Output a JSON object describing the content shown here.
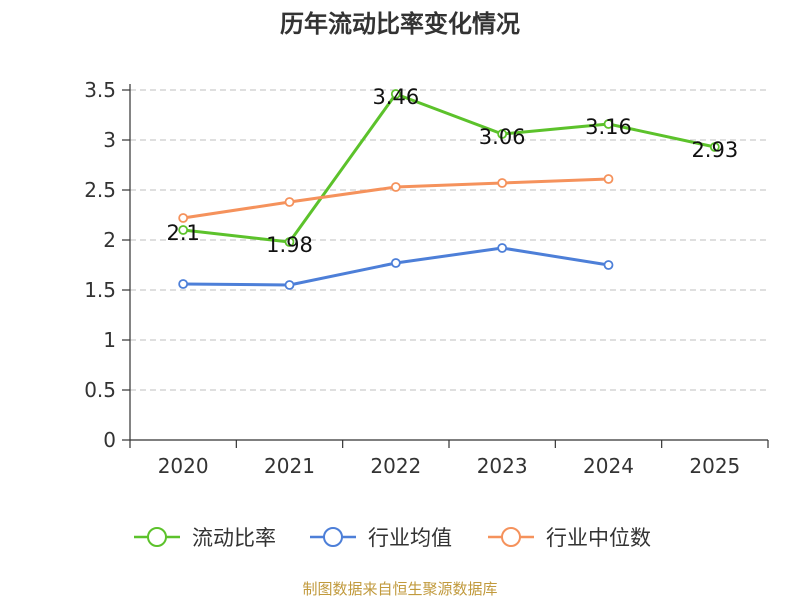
{
  "chart_data": {
    "type": "line",
    "title": "历年流动比率变化情况",
    "categories": [
      "2020",
      "2021",
      "2022",
      "2023",
      "2024",
      "2025"
    ],
    "ylim": [
      0,
      3.5
    ],
    "yticks": [
      "0",
      "0.5",
      "1",
      "1.5",
      "2",
      "2.5",
      "3",
      "3.5"
    ],
    "ytick_values": [
      0,
      0.5,
      1,
      1.5,
      2,
      2.5,
      3,
      3.5
    ],
    "grid": true,
    "legend_position": "bottom",
    "series": [
      {
        "name": "流动比率",
        "color": "#5cc22b",
        "values": [
          2.1,
          1.98,
          3.46,
          3.06,
          3.16,
          2.93
        ],
        "labels": [
          "2.1",
          "1.98",
          "3.46",
          "3.06",
          "3.16",
          "2.93"
        ]
      },
      {
        "name": "行业均值",
        "color": "#4d7fd8",
        "values": [
          1.56,
          1.55,
          1.77,
          1.92,
          1.75,
          null
        ]
      },
      {
        "name": "行业中位数",
        "color": "#f5925c",
        "values": [
          2.22,
          2.38,
          2.53,
          2.57,
          2.61,
          null
        ]
      }
    ]
  },
  "footer": {
    "source": "制图数据来自恒生聚源数据库"
  }
}
